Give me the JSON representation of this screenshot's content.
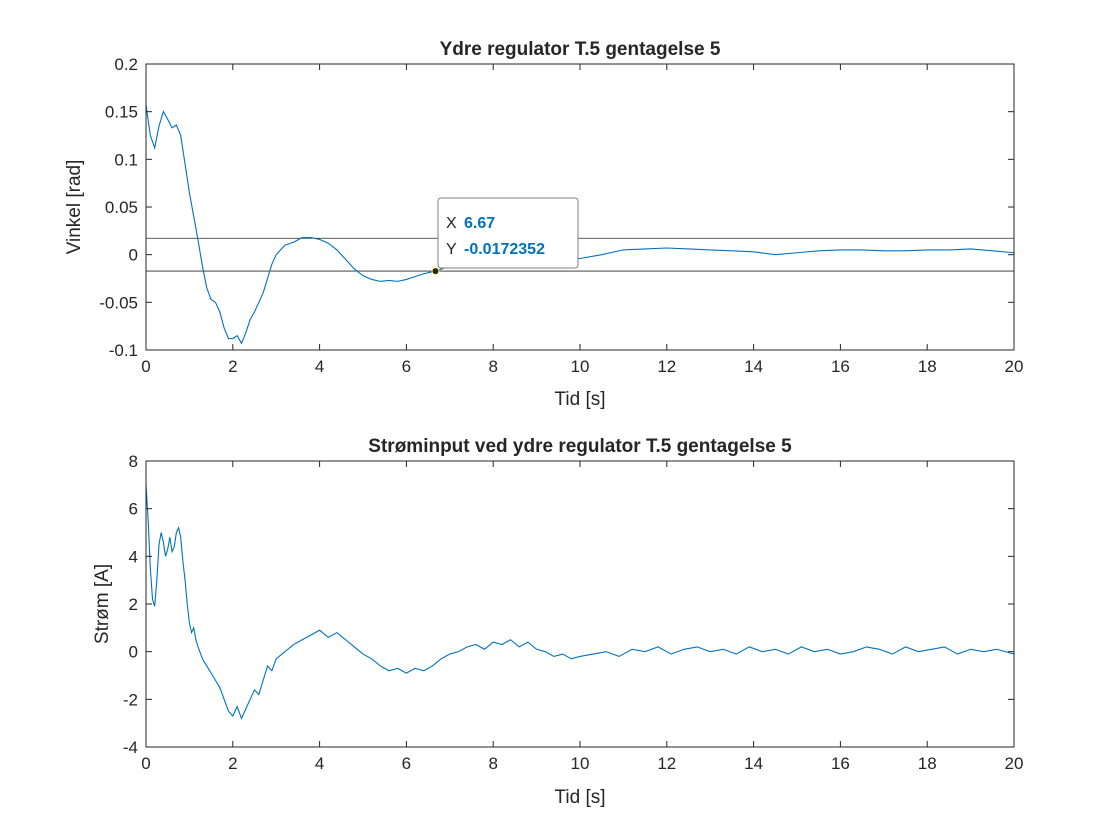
{
  "chart_data": [
    {
      "type": "line",
      "title": "Ydre regulator T.5 gentagelse 5",
      "xlabel": "Tid [s]",
      "ylabel": "Vinkel [rad]",
      "xlim": [
        0,
        20
      ],
      "ylim": [
        -0.1,
        0.2
      ],
      "xticks": [
        0,
        2,
        4,
        6,
        8,
        10,
        12,
        14,
        16,
        18,
        20
      ],
      "xtick_labels": [
        "0",
        "2",
        "4",
        "6",
        "8",
        "10",
        "12",
        "14",
        "16",
        "18",
        "20"
      ],
      "yticks": [
        -0.1,
        -0.05,
        0,
        0.05,
        0.1,
        0.15,
        0.2
      ],
      "ytick_labels": [
        "-0.1",
        "-0.05",
        "0",
        "0.05",
        "0.1",
        "0.15",
        "0.2"
      ],
      "grid": false,
      "line_color": "#0072bd",
      "reference_lines": [
        0.0172,
        -0.0172
      ],
      "series": [
        {
          "x": [
            0,
            0.1,
            0.2,
            0.3,
            0.4,
            0.5,
            0.6,
            0.7,
            0.8,
            0.9,
            1.0,
            1.1,
            1.2,
            1.3,
            1.4,
            1.5,
            1.6,
            1.7,
            1.8,
            1.9,
            2.0,
            2.1,
            2.2,
            2.3,
            2.4,
            2.5,
            2.6,
            2.7,
            2.8,
            2.9,
            3.0,
            3.2,
            3.4,
            3.6,
            3.8,
            4.0,
            4.2,
            4.4,
            4.6,
            4.8,
            5.0,
            5.2,
            5.4,
            5.6,
            5.8,
            6.0,
            6.2,
            6.4,
            6.67,
            7.0,
            7.5,
            8.0,
            8.5,
            9.0,
            9.5,
            10.0,
            10.5,
            11.0,
            11.5,
            12.0,
            12.5,
            13.0,
            13.5,
            14.0,
            14.5,
            15.0,
            15.5,
            16.0,
            16.5,
            17.0,
            17.5,
            18.0,
            18.5,
            19.0,
            19.5,
            20.0
          ],
          "y": [
            0.157,
            0.125,
            0.112,
            0.135,
            0.15,
            0.142,
            0.133,
            0.136,
            0.125,
            0.095,
            0.065,
            0.04,
            0.015,
            -0.012,
            -0.035,
            -0.047,
            -0.05,
            -0.06,
            -0.077,
            -0.088,
            -0.088,
            -0.085,
            -0.093,
            -0.082,
            -0.068,
            -0.06,
            -0.05,
            -0.04,
            -0.025,
            -0.01,
            0.0,
            0.01,
            0.013,
            0.018,
            0.018,
            0.016,
            0.012,
            0.005,
            -0.005,
            -0.015,
            -0.022,
            -0.026,
            -0.028,
            -0.027,
            -0.028,
            -0.026,
            -0.023,
            -0.02,
            -0.0172,
            -0.012,
            -0.012,
            -0.01,
            -0.01,
            -0.007,
            -0.006,
            -0.004,
            0.0,
            0.005,
            0.006,
            0.007,
            0.006,
            0.005,
            0.004,
            0.003,
            0.0,
            0.002,
            0.004,
            0.005,
            0.005,
            0.004,
            0.004,
            0.005,
            0.005,
            0.006,
            0.004,
            0.002
          ]
        }
      ],
      "datatip": {
        "x": 6.67,
        "y": -0.0172352,
        "x_key": "X",
        "y_key": "Y",
        "x_text": "6.67",
        "y_text": "-0.0172352"
      }
    },
    {
      "type": "line",
      "title": "Strøminput ved ydre regulator T.5 gentagelse 5",
      "xlabel": "Tid [s]",
      "ylabel": "Strøm [A]",
      "xlim": [
        0,
        20
      ],
      "ylim": [
        -4,
        8
      ],
      "xticks": [
        0,
        2,
        4,
        6,
        8,
        10,
        12,
        14,
        16,
        18,
        20
      ],
      "xtick_labels": [
        "0",
        "2",
        "4",
        "6",
        "8",
        "10",
        "12",
        "14",
        "16",
        "18",
        "20"
      ],
      "yticks": [
        -4,
        -2,
        0,
        2,
        4,
        6,
        8
      ],
      "ytick_labels": [
        "-4",
        "-2",
        "0",
        "2",
        "4",
        "6",
        "8"
      ],
      "grid": false,
      "line_color": "#0072bd",
      "series": [
        {
          "x": [
            0,
            0.05,
            0.1,
            0.15,
            0.2,
            0.25,
            0.3,
            0.35,
            0.4,
            0.45,
            0.5,
            0.55,
            0.6,
            0.65,
            0.7,
            0.75,
            0.8,
            0.85,
            0.9,
            0.95,
            1.0,
            1.05,
            1.1,
            1.15,
            1.2,
            1.3,
            1.4,
            1.5,
            1.6,
            1.7,
            1.8,
            1.9,
            2.0,
            2.1,
            2.2,
            2.3,
            2.4,
            2.5,
            2.6,
            2.7,
            2.8,
            2.9,
            3.0,
            3.2,
            3.4,
            3.6,
            3.8,
            4.0,
            4.2,
            4.4,
            4.6,
            4.8,
            5.0,
            5.2,
            5.4,
            5.6,
            5.8,
            6.0,
            6.2,
            6.4,
            6.6,
            6.8,
            7.0,
            7.2,
            7.4,
            7.6,
            7.8,
            8.0,
            8.2,
            8.4,
            8.6,
            8.8,
            9.0,
            9.2,
            9.4,
            9.6,
            9.8,
            10.0,
            10.3,
            10.6,
            10.9,
            11.2,
            11.5,
            11.8,
            12.1,
            12.4,
            12.7,
            13.0,
            13.3,
            13.6,
            13.9,
            14.2,
            14.5,
            14.8,
            15.1,
            15.4,
            15.7,
            16.0,
            16.3,
            16.6,
            16.9,
            17.2,
            17.5,
            17.8,
            18.1,
            18.4,
            18.7,
            19.0,
            19.3,
            19.6,
            20.0
          ],
          "y": [
            7.0,
            5.5,
            3.5,
            2.2,
            1.9,
            3.0,
            4.5,
            5.0,
            4.6,
            4.0,
            4.3,
            4.8,
            4.2,
            4.4,
            5.0,
            5.2,
            4.8,
            3.8,
            3.0,
            2.0,
            1.2,
            0.8,
            1.0,
            0.5,
            0.2,
            -0.3,
            -0.6,
            -0.9,
            -1.2,
            -1.5,
            -2.0,
            -2.5,
            -2.7,
            -2.3,
            -2.8,
            -2.4,
            -2.0,
            -1.6,
            -1.8,
            -1.2,
            -0.6,
            -0.8,
            -0.3,
            0.0,
            0.3,
            0.5,
            0.7,
            0.9,
            0.6,
            0.8,
            0.5,
            0.2,
            -0.1,
            -0.3,
            -0.6,
            -0.8,
            -0.7,
            -0.9,
            -0.7,
            -0.8,
            -0.6,
            -0.3,
            -0.1,
            0.0,
            0.2,
            0.3,
            0.1,
            0.4,
            0.3,
            0.5,
            0.2,
            0.4,
            0.1,
            0.0,
            -0.2,
            -0.1,
            -0.3,
            -0.2,
            -0.1,
            0.0,
            -0.2,
            0.1,
            0.0,
            0.2,
            -0.1,
            0.1,
            0.2,
            0.0,
            0.1,
            -0.1,
            0.2,
            0.0,
            0.1,
            -0.1,
            0.2,
            0.0,
            0.1,
            -0.1,
            0.0,
            0.2,
            0.1,
            -0.1,
            0.2,
            0.0,
            0.1,
            0.2,
            -0.1,
            0.1,
            0.0,
            0.1,
            -0.1
          ]
        }
      ]
    }
  ]
}
